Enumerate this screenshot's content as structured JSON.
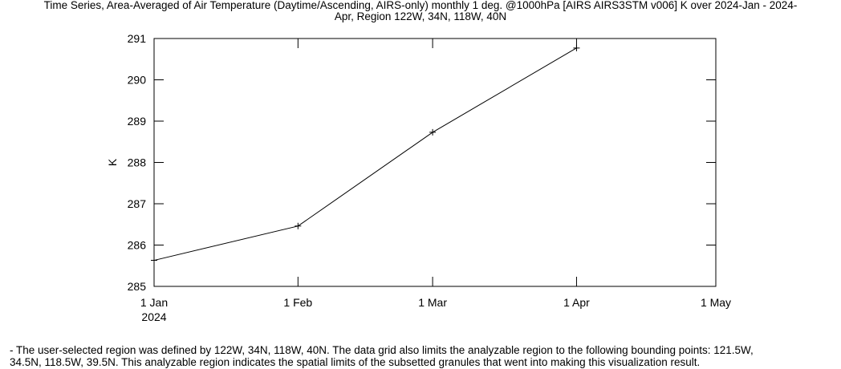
{
  "title_lines": [
    "Time Series, Area-Averaged of Air Temperature (Daytime/Ascending, AIRS-only) monthly 1 deg. @1000hPa [AIRS AIRS3STM v006] K over 2024-Jan - 2024-",
    "Apr, Region 122W, 34N, 118W, 40N"
  ],
  "footnote_lines": [
    "- The user-selected region was defined by 122W, 34N, 118W, 40N. The data grid also limits the analyzable region to the following bounding points: 121.5W,",
    "34.5N, 118.5W, 39.5N. This analyzable region indicates the spatial limits of the subsetted granules that went into making this visualization result."
  ],
  "chart_data": {
    "type": "line",
    "title": "Time Series, Area-Averaged of Air Temperature (Daytime/Ascending, AIRS-only) monthly 1 deg. @1000hPa [AIRS AIRS3STM v006] K over 2024-Jan - 2024-Apr, Region 122W, 34N, 118W, 40N",
    "xlabel": "",
    "ylabel": "K",
    "x": [
      "2024-01-01",
      "2024-02-01",
      "2024-03-01",
      "2024-04-01"
    ],
    "xlim": [
      "2024-01-01",
      "2024-05-01"
    ],
    "x_ticks": [
      "1 Jan",
      "1 Feb",
      "1 Mar",
      "1 Apr",
      "1 May"
    ],
    "x_tick_sublabel": "2024",
    "y_ticks": [
      "285",
      "286",
      "287",
      "288",
      "289",
      "290",
      "291"
    ],
    "ylim": [
      285,
      291
    ],
    "series": [
      {
        "values": [
          285.63,
          286.46,
          288.73,
          290.77
        ]
      }
    ],
    "grid": false,
    "marker": "plus",
    "line_color": "#000000"
  }
}
